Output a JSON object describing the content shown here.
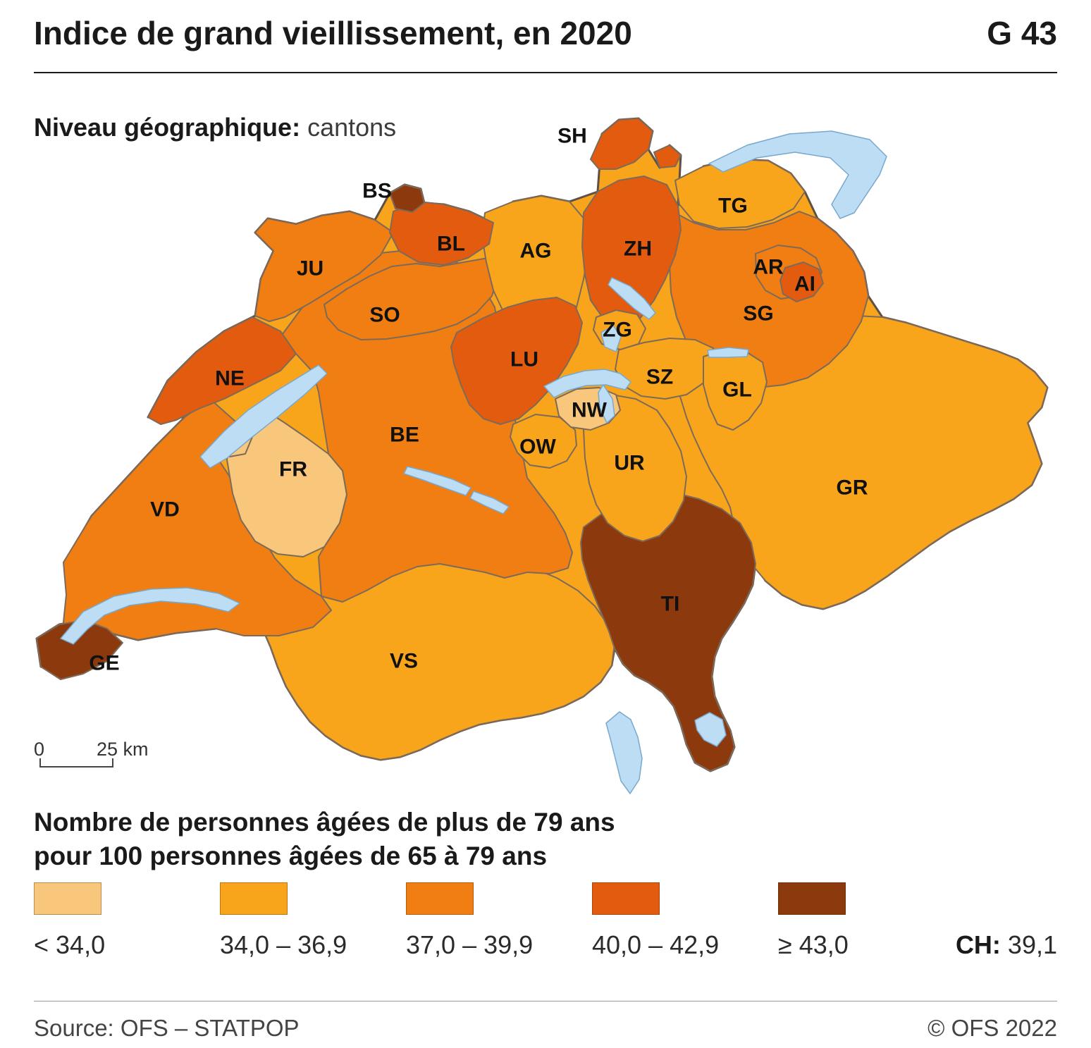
{
  "header": {
    "title": "Indice de grand vieillissement, en 2020",
    "code": "G 43"
  },
  "subtitle": {
    "label": "Niveau géographique:",
    "value": "cantons"
  },
  "scalebar": {
    "zero": "0",
    "distance": "25 km"
  },
  "legend": {
    "title_line1": "Nombre de personnes âgées de plus de 79 ans",
    "title_line2": "pour 100 personnes âgées de 65 à 79 ans",
    "classes": [
      {
        "label": "< 34,0",
        "color": "#F9C77B"
      },
      {
        "label": "34,0 – 36,9",
        "color": "#F9A51B"
      },
      {
        "label": "37,0 – 39,9",
        "color": "#F07E13"
      },
      {
        "label": "40,0 – 42,9",
        "color": "#E25B0E"
      },
      {
        "label": "≥ 43,0",
        "color": "#8C3A0D"
      }
    ],
    "ch_label": "CH:",
    "ch_value": "39,1"
  },
  "footer": {
    "source": "Source: OFS – STATPOP",
    "copyright": "© OFS 2022"
  },
  "map": {
    "cantons": [
      {
        "id": "GE",
        "label": "GE",
        "cls": 5
      },
      {
        "id": "VD",
        "label": "VD",
        "cls": 3
      },
      {
        "id": "NE",
        "label": "NE",
        "cls": 4
      },
      {
        "id": "FR",
        "label": "FR",
        "cls": 1
      },
      {
        "id": "JU",
        "label": "JU",
        "cls": 3
      },
      {
        "id": "BE",
        "label": "BE",
        "cls": 3
      },
      {
        "id": "SO",
        "label": "SO",
        "cls": 3
      },
      {
        "id": "BS",
        "label": "BS",
        "cls": 5
      },
      {
        "id": "BL",
        "label": "BL",
        "cls": 4
      },
      {
        "id": "AG",
        "label": "AG",
        "cls": 2
      },
      {
        "id": "LU",
        "label": "LU",
        "cls": 4
      },
      {
        "id": "ZH",
        "label": "ZH",
        "cls": 4
      },
      {
        "id": "SH",
        "label": "SH",
        "cls": 4
      },
      {
        "id": "TG",
        "label": "TG",
        "cls": 2
      },
      {
        "id": "SG",
        "label": "SG",
        "cls": 3
      },
      {
        "id": "AR",
        "label": "AR",
        "cls": 3
      },
      {
        "id": "AI",
        "label": "AI",
        "cls": 4
      },
      {
        "id": "ZG",
        "label": "ZG",
        "cls": 2
      },
      {
        "id": "SZ",
        "label": "SZ",
        "cls": 2
      },
      {
        "id": "GL",
        "label": "GL",
        "cls": 2
      },
      {
        "id": "NW",
        "label": "NW",
        "cls": 1
      },
      {
        "id": "OW",
        "label": "OW",
        "cls": 2
      },
      {
        "id": "UR",
        "label": "UR",
        "cls": 2
      },
      {
        "id": "GR",
        "label": "GR",
        "cls": 2
      },
      {
        "id": "VS",
        "label": "VS",
        "cls": 2
      },
      {
        "id": "TI",
        "label": "TI",
        "cls": 5
      }
    ]
  }
}
